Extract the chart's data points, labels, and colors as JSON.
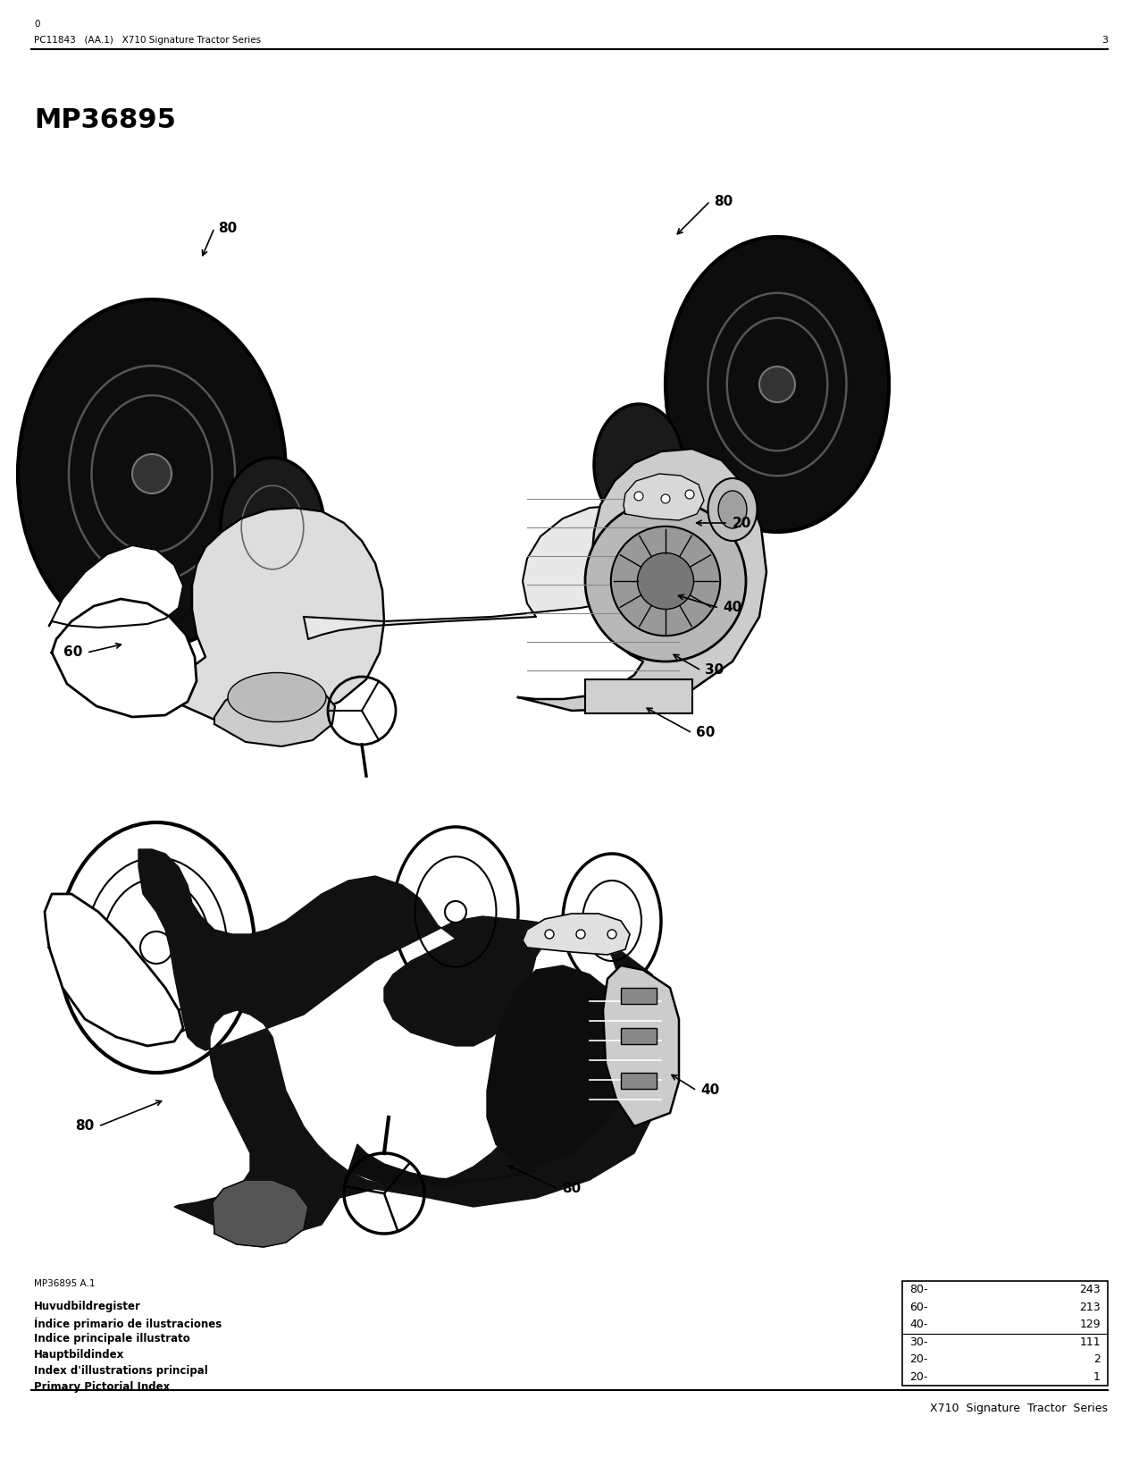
{
  "page_width": 12.75,
  "page_height": 16.5,
  "dpi": 100,
  "background_color": "#ffffff",
  "header_title": "X710  Signature  Tractor  Series",
  "index_labels": [
    "Primary Pictorial Index",
    "Index d'illustrations principal",
    "Hauptbildindex",
    "Indice principale illustrato",
    "Índice primario de ilustraciones",
    "Huvudbildregister"
  ],
  "mp_label": "MP36895 A.1",
  "table_rows": [
    [
      "20-",
      "1"
    ],
    [
      "20-",
      "2"
    ],
    [
      "30-",
      "111"
    ],
    [
      "40-",
      "129"
    ],
    [
      "60-",
      "213"
    ],
    [
      "80-",
      "243"
    ]
  ],
  "footer_left_text": "PC11843   (AA.1)   X710 Signature Tractor Series",
  "footer_page_num": "3",
  "footer_sub_text": "0",
  "mp36895_label": "MP36895"
}
